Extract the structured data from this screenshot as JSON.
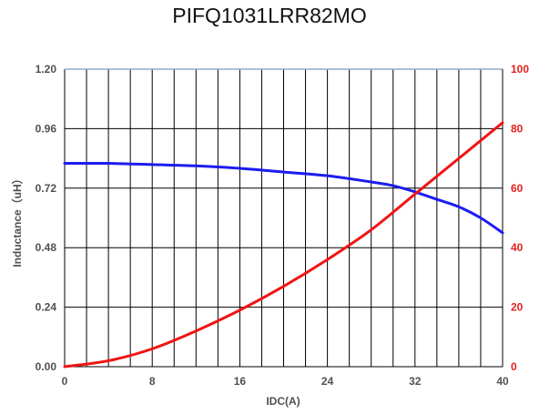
{
  "chart_data": {
    "type": "line",
    "title": "PIFQ1031LRR82MO",
    "xlabel": "IDC(A)",
    "ylabel": "Inductance（uH）",
    "y2label": "",
    "xlim": [
      0,
      40
    ],
    "ylim": [
      0,
      1.2
    ],
    "y2lim": [
      0,
      100
    ],
    "x_ticks": [
      "0",
      "8",
      "16",
      "24",
      "32",
      "40"
    ],
    "y_ticks": [
      "0.00",
      "0.24",
      "0.48",
      "0.72",
      "0.96",
      "1.20"
    ],
    "y2_ticks": [
      "0",
      "20",
      "40",
      "60",
      "80",
      "100"
    ],
    "grid": "vertical every 2 A, horizontal every 0.24 uH",
    "colors": {
      "inductance": "#1c1cf0",
      "temperature": "#f01414",
      "right_axis": "#e61e1e",
      "grid": "#000000"
    },
    "series": [
      {
        "name": "",
        "axis": "left",
        "color": "#1c1cf0",
        "x": [
          0,
          4,
          8,
          12,
          16,
          20,
          24,
          28,
          30,
          32,
          34,
          36,
          38,
          40
        ],
        "y": [
          0.82,
          0.82,
          0.815,
          0.81,
          0.8,
          0.785,
          0.77,
          0.745,
          0.73,
          0.705,
          0.675,
          0.645,
          0.6,
          0.54
        ]
      },
      {
        "name": "",
        "axis": "right",
        "color": "#f01414",
        "x": [
          0,
          4,
          8,
          12,
          16,
          20,
          24,
          28,
          32,
          36,
          40
        ],
        "y": [
          0,
          2,
          6,
          12,
          19,
          27,
          36,
          46,
          58,
          70,
          82
        ]
      }
    ]
  }
}
